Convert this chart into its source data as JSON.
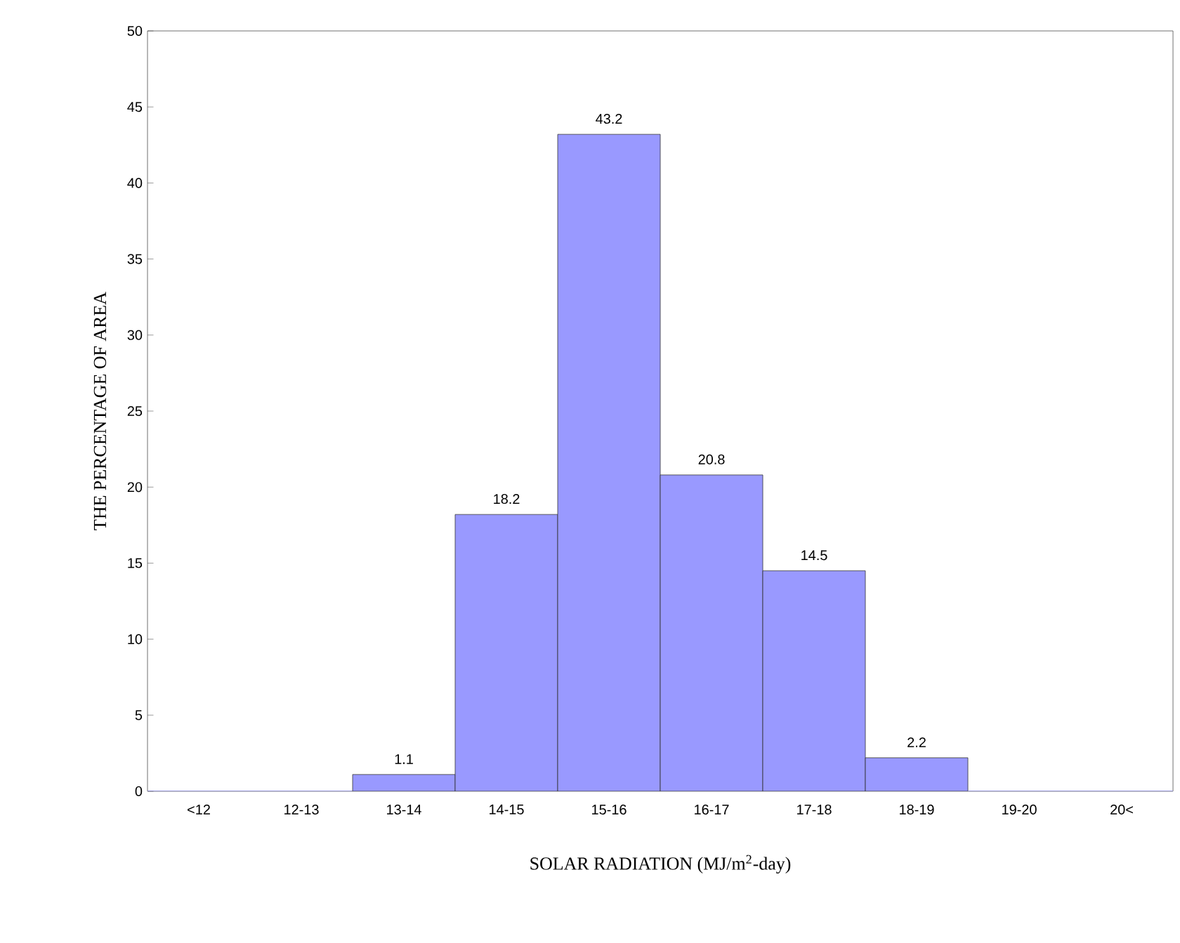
{
  "chart_data": {
    "type": "bar",
    "xlabel": "SOLAR RADIATION (MJ/m$^{2}$-day)",
    "ylabel": "THE PERCENTAGE OF AREA",
    "categories": [
      "<12",
      "12-13",
      "13-14",
      "14-15",
      "15-16",
      "16-17",
      "17-18",
      "18-19",
      "19-20",
      "20<"
    ],
    "values": [
      0,
      0,
      1.1,
      18.2,
      43.2,
      20.8,
      14.5,
      2.2,
      0,
      0
    ],
    "value_labels": [
      null,
      null,
      "1.1",
      "18.2",
      "43.2",
      "20.8",
      "14.5",
      "2.2",
      null,
      null
    ],
    "color": "#9999ff",
    "ylim": [
      0,
      50
    ],
    "yticks": [
      0,
      5,
      10,
      15,
      20,
      25,
      30,
      35,
      40,
      45,
      50
    ],
    "grid": false
  }
}
